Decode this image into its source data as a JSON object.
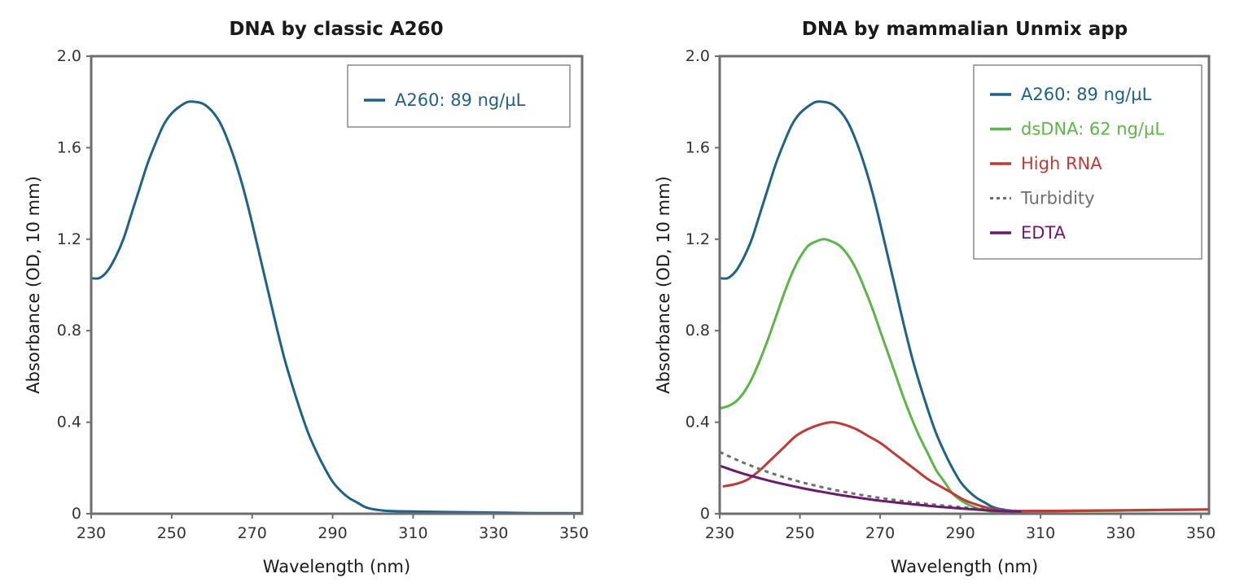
{
  "chart_data": [
    {
      "type": "line",
      "title": "DNA by classic A260",
      "xlabel": "Wavelength (nm)",
      "ylabel": "Absorbance (OD, 10 mm)",
      "xlim": [
        230,
        352
      ],
      "ylim": [
        0,
        2.0
      ],
      "xticks": [
        "230",
        "250",
        "270",
        "290",
        "310",
        "330",
        "350"
      ],
      "yticks": [
        "0",
        "0.4",
        "0.8",
        "1.2",
        "1.6",
        "2.0"
      ],
      "grid": false,
      "legend": "top-right",
      "series": [
        {
          "name": "A260: 89 ng/µL",
          "color": "#1f6287",
          "dash": false,
          "x": [
            230,
            232,
            234,
            236,
            238,
            240,
            242,
            244,
            246,
            248,
            250,
            252,
            254,
            256,
            258,
            260,
            262,
            264,
            266,
            268,
            270,
            272,
            274,
            276,
            278,
            280,
            282,
            284,
            286,
            288,
            290,
            292,
            294,
            296,
            298,
            300,
            302,
            304,
            310,
            320,
            330,
            340,
            352
          ],
          "y": [
            1.03,
            1.03,
            1.06,
            1.12,
            1.2,
            1.31,
            1.42,
            1.53,
            1.62,
            1.7,
            1.75,
            1.78,
            1.8,
            1.8,
            1.79,
            1.76,
            1.71,
            1.63,
            1.53,
            1.41,
            1.27,
            1.12,
            0.97,
            0.82,
            0.68,
            0.56,
            0.45,
            0.35,
            0.27,
            0.2,
            0.14,
            0.1,
            0.07,
            0.05,
            0.03,
            0.02,
            0.015,
            0.012,
            0.01,
            0.007,
            0.005,
            0.003,
            0.002
          ]
        }
      ]
    },
    {
      "type": "line",
      "title": "DNA by mammalian Unmix app",
      "xlabel": "Wavelength (nm)",
      "ylabel": "Absorbance (OD, 10 mm)",
      "xlim": [
        230,
        352
      ],
      "ylim": [
        0,
        2.0
      ],
      "xticks": [
        "230",
        "250",
        "270",
        "290",
        "310",
        "330",
        "350"
      ],
      "yticks": [
        "0",
        "0.4",
        "0.8",
        "1.2",
        "1.6",
        "2.0"
      ],
      "grid": false,
      "legend": "top-right",
      "series": [
        {
          "name": "A260: 89 ng/µL",
          "color": "#1f6287",
          "dash": false,
          "x": [
            230,
            232,
            234,
            236,
            238,
            240,
            242,
            244,
            246,
            248,
            250,
            252,
            254,
            256,
            258,
            260,
            262,
            264,
            266,
            268,
            270,
            272,
            274,
            276,
            278,
            280,
            282,
            284,
            286,
            288,
            290,
            292,
            294,
            296,
            298,
            300,
            302,
            304,
            310,
            320,
            330,
            340,
            352
          ],
          "y": [
            1.03,
            1.03,
            1.06,
            1.12,
            1.2,
            1.31,
            1.42,
            1.53,
            1.62,
            1.7,
            1.75,
            1.78,
            1.8,
            1.8,
            1.79,
            1.76,
            1.71,
            1.63,
            1.53,
            1.41,
            1.27,
            1.12,
            0.97,
            0.82,
            0.68,
            0.56,
            0.45,
            0.35,
            0.27,
            0.2,
            0.14,
            0.1,
            0.07,
            0.05,
            0.03,
            0.02,
            0.015,
            0.012,
            0.012,
            0.013,
            0.014,
            0.016,
            0.018
          ]
        },
        {
          "name": "dsDNA: 62 ng/µL",
          "color": "#5cb547",
          "dash": false,
          "x": [
            230,
            232,
            234,
            236,
            238,
            240,
            242,
            244,
            246,
            248,
            250,
            252,
            254,
            256,
            258,
            260,
            262,
            264,
            266,
            268,
            270,
            272,
            274,
            276,
            278,
            280,
            282,
            284,
            286,
            288,
            290,
            292,
            294,
            296,
            298,
            300,
            302,
            310,
            320,
            330,
            340,
            352
          ],
          "y": [
            0.46,
            0.47,
            0.49,
            0.53,
            0.59,
            0.67,
            0.76,
            0.86,
            0.96,
            1.05,
            1.12,
            1.17,
            1.19,
            1.2,
            1.19,
            1.17,
            1.13,
            1.07,
            0.99,
            0.9,
            0.8,
            0.7,
            0.6,
            0.5,
            0.41,
            0.33,
            0.26,
            0.19,
            0.14,
            0.09,
            0.06,
            0.04,
            0.025,
            0.015,
            0.01,
            0.008,
            0.008,
            0.01,
            0.012,
            0.014,
            0.016,
            0.018
          ]
        },
        {
          "name": "High RNA",
          "color": "#c13a34",
          "dash": false,
          "x": [
            231,
            234,
            237,
            240,
            243,
            246,
            249,
            252,
            255,
            258,
            261,
            264,
            267,
            270,
            273,
            276,
            279,
            282,
            285,
            288,
            291,
            294,
            297,
            300,
            302,
            310,
            320,
            330,
            340,
            352
          ],
          "y": [
            0.12,
            0.13,
            0.15,
            0.19,
            0.24,
            0.29,
            0.34,
            0.37,
            0.39,
            0.4,
            0.39,
            0.37,
            0.34,
            0.31,
            0.27,
            0.23,
            0.19,
            0.15,
            0.12,
            0.09,
            0.06,
            0.04,
            0.025,
            0.015,
            0.012,
            0.012,
            0.013,
            0.015,
            0.017,
            0.019
          ]
        },
        {
          "name": "Turbidity",
          "color": "#6d6e71",
          "dash": true,
          "x": [
            230,
            235,
            240,
            245,
            250,
            255,
            260,
            265,
            270,
            275,
            280,
            285,
            290,
            295,
            300,
            305
          ],
          "y": [
            0.27,
            0.23,
            0.195,
            0.165,
            0.14,
            0.118,
            0.099,
            0.083,
            0.069,
            0.057,
            0.046,
            0.037,
            0.029,
            0.022,
            0.016,
            0.012
          ]
        },
        {
          "name": "EDTA",
          "color": "#6b1a6e",
          "dash": false,
          "x": [
            230,
            235,
            240,
            245,
            250,
            255,
            260,
            265,
            270,
            275,
            280,
            285,
            290,
            295,
            300,
            305
          ],
          "y": [
            0.21,
            0.18,
            0.155,
            0.133,
            0.114,
            0.097,
            0.082,
            0.069,
            0.057,
            0.047,
            0.038,
            0.03,
            0.023,
            0.017,
            0.012,
            0.009
          ]
        }
      ]
    }
  ]
}
